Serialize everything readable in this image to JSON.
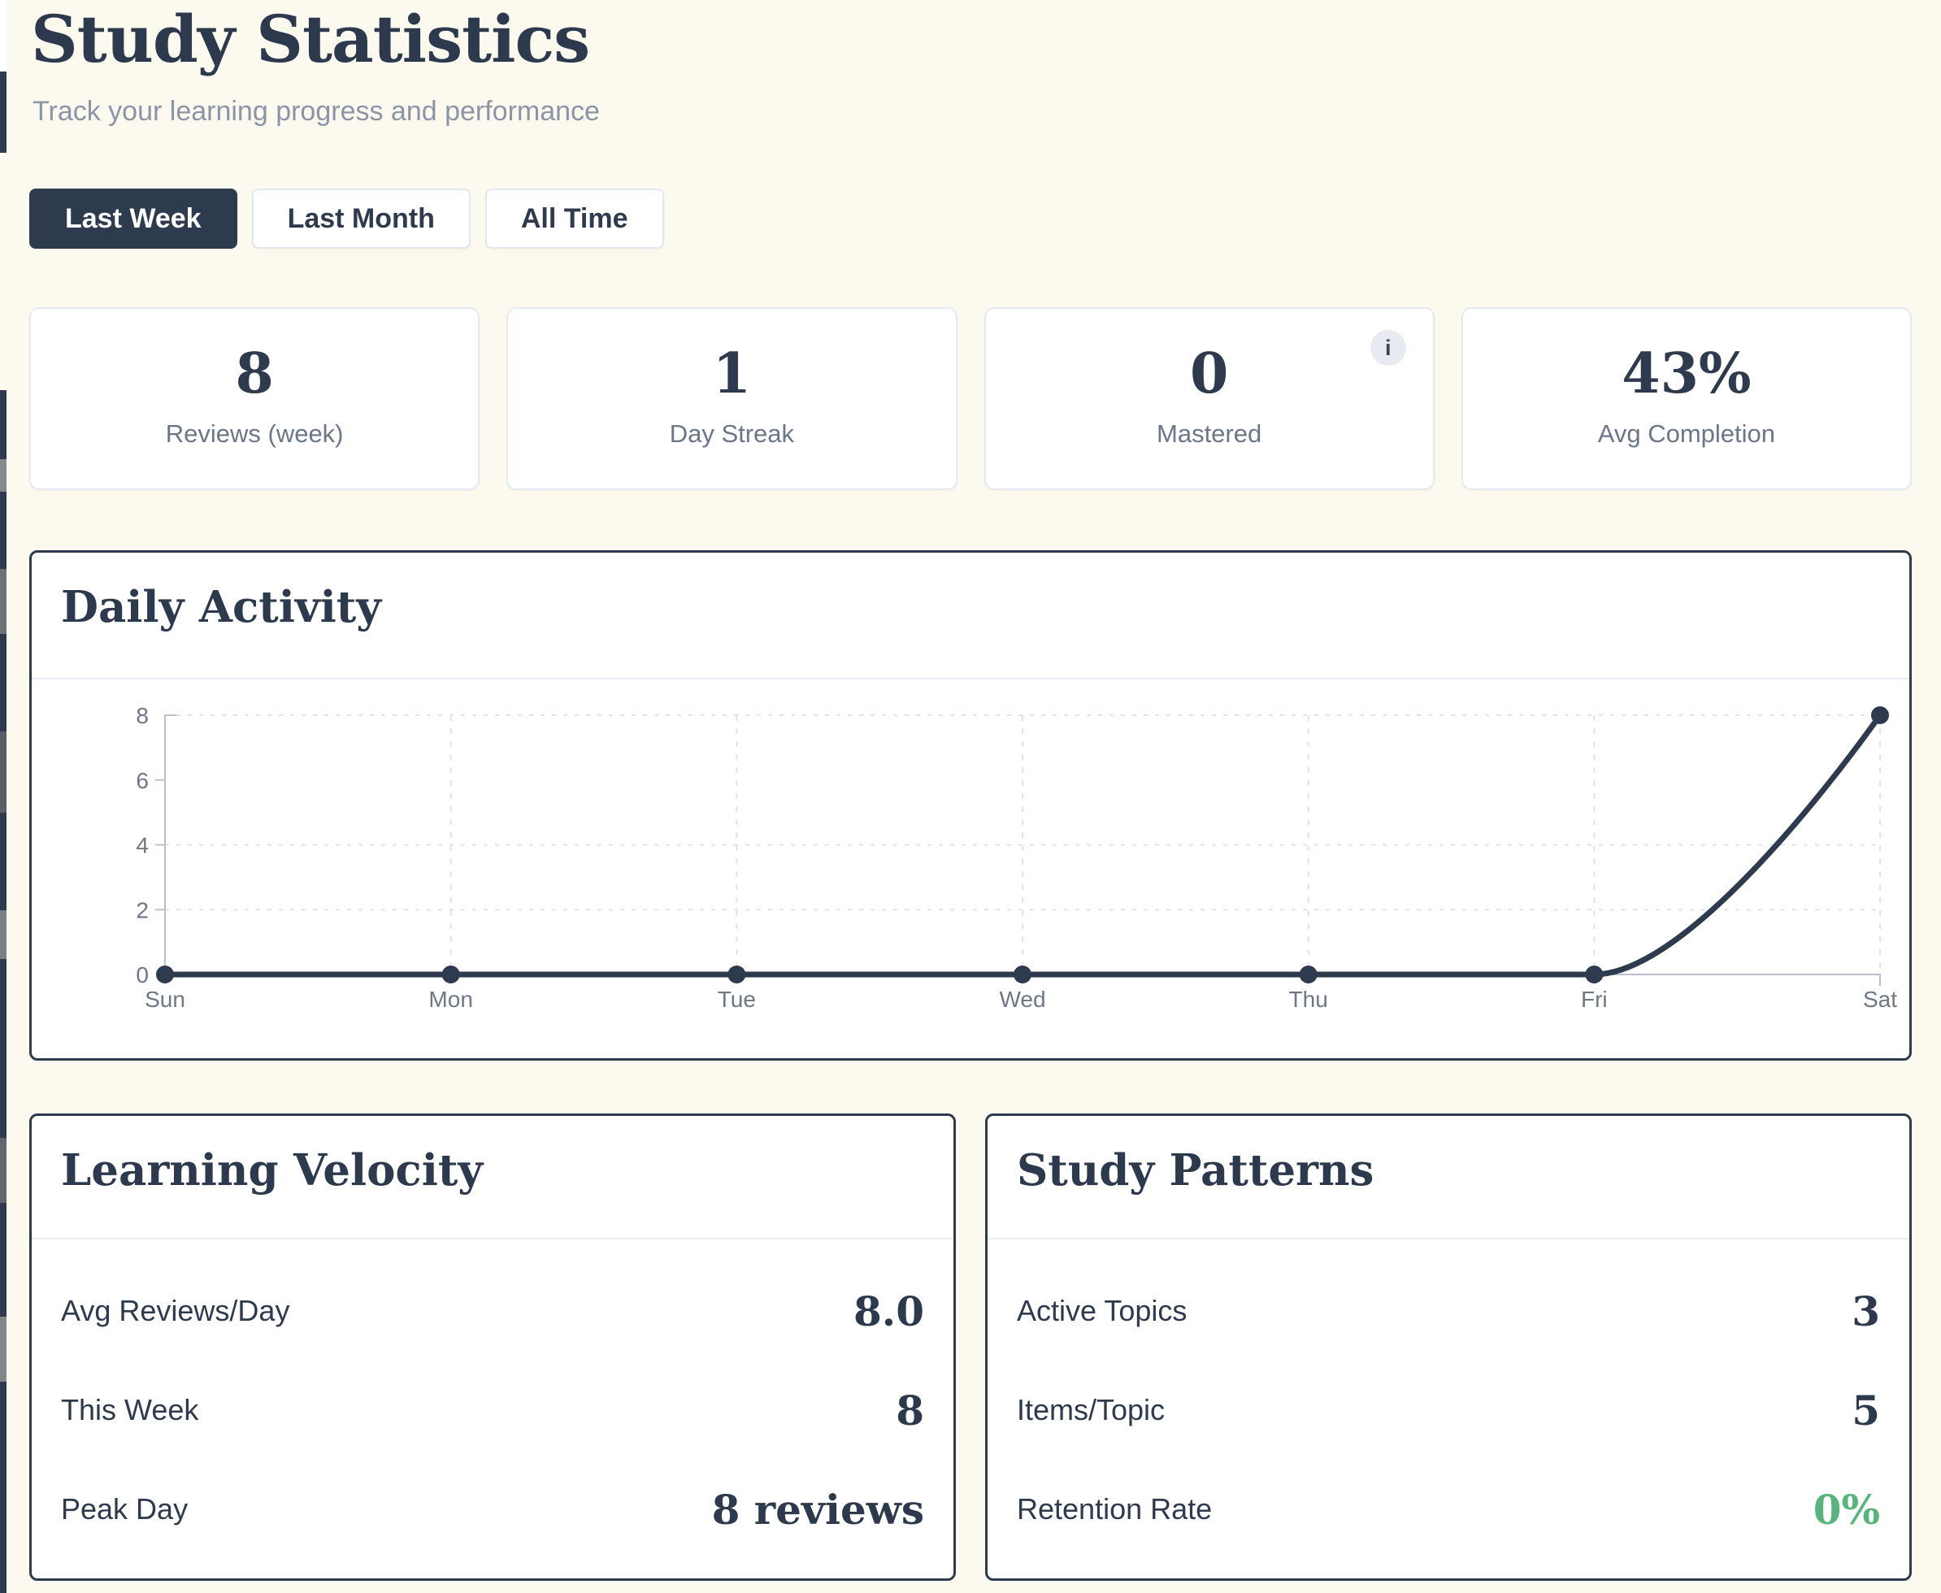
{
  "page": {
    "title": "Study Statistics",
    "subtitle": "Track your learning progress and performance",
    "background_color": "#fcfaef",
    "accent_dark": "#2e3a4d",
    "positive_green": "#55b57a"
  },
  "tabs": [
    {
      "label": "Last Week",
      "active": true
    },
    {
      "label": "Last Month",
      "active": false
    },
    {
      "label": "All Time",
      "active": false
    }
  ],
  "stats": [
    {
      "value": "8",
      "label": "Reviews (week)"
    },
    {
      "value": "1",
      "label": "Day Streak"
    },
    {
      "value": "0",
      "label": "Mastered",
      "info_icon": "i"
    },
    {
      "value": "43%",
      "label": "Avg Completion"
    }
  ],
  "chart_data": {
    "type": "line",
    "title": "Daily Activity",
    "x": [
      "Sun",
      "Mon",
      "Tue",
      "Wed",
      "Thu",
      "Fri",
      "Sat"
    ],
    "values": [
      0,
      0,
      0,
      0,
      0,
      0,
      8
    ],
    "ylim": [
      0,
      8
    ],
    "yticks": [
      8,
      6,
      4,
      2,
      0
    ],
    "gridlines_h": [
      2,
      4,
      8
    ],
    "grid": "dashed",
    "legend": "none",
    "line_color": "#2e3a4e"
  },
  "learning_velocity": {
    "title": "Learning Velocity",
    "rows": [
      {
        "label": "Avg Reviews/Day",
        "value": "8.0"
      },
      {
        "label": "This Week",
        "value": "8"
      },
      {
        "label": "Peak Day",
        "value": "8 reviews"
      }
    ]
  },
  "study_patterns": {
    "title": "Study Patterns",
    "rows": [
      {
        "label": "Active Topics",
        "value": "3"
      },
      {
        "label": "Items/Topic",
        "value": "5"
      },
      {
        "label": "Retention Rate",
        "value": "0%",
        "color": "#55b57a"
      }
    ]
  }
}
